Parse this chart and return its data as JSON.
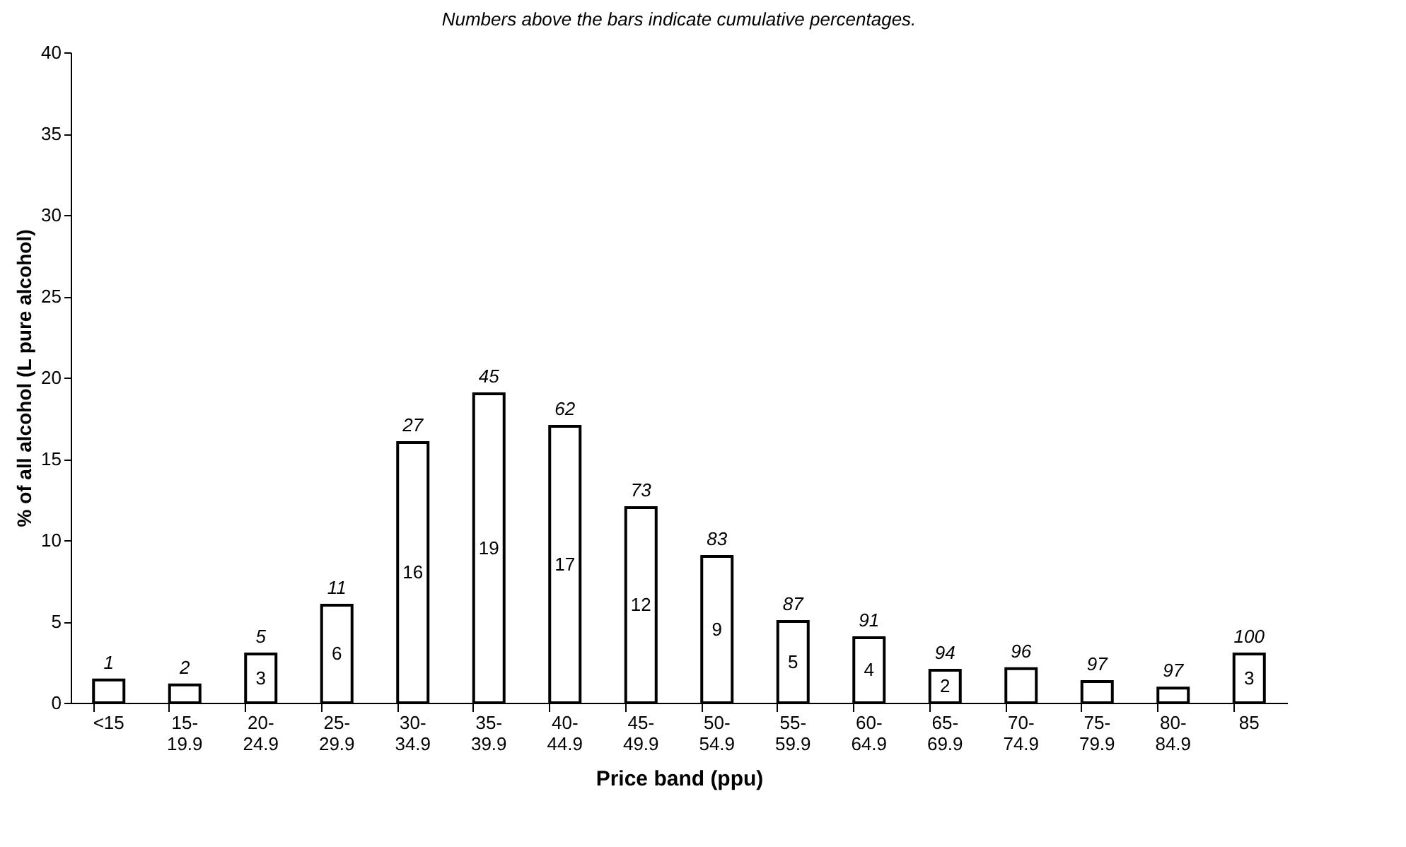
{
  "chart_data": {
    "type": "bar",
    "title": "Numbers above the bars indicate cumulative percentages.",
    "xlabel": "Price band (ppu)",
    "ylabel": "% of all alcohol (L pure alcohol)",
    "categories": [
      "<15",
      "15-19.9",
      "20-24.9",
      "25-29.9",
      "30-34.9",
      "35-39.9",
      "40-44.9",
      "45-49.9",
      "50-54.9",
      "55-59.9",
      "60-64.9",
      "65-69.9",
      "70-74.9",
      "75-79.9",
      "80-84.9",
      "85"
    ],
    "values": [
      1.4,
      1.1,
      3,
      6,
      16,
      19,
      17,
      12,
      9,
      5,
      4,
      2,
      2.1,
      1.3,
      0.9,
      3
    ],
    "value_labels": [
      null,
      null,
      "3",
      "6",
      "16",
      "19",
      "17",
      "12",
      "9",
      "5",
      "4",
      "2",
      null,
      null,
      null,
      "3"
    ],
    "color": "#ffffff",
    "ylim": [
      0,
      40
    ],
    "yticks": [
      0,
      5,
      10,
      15,
      20,
      25,
      30,
      35,
      40
    ],
    "grid": false,
    "annotations": [
      {
        "text": "1",
        "x": "<15",
        "y": 1.4
      },
      {
        "text": "2",
        "x": "15-19.9",
        "y": 1.1
      },
      {
        "text": "5",
        "x": "20-24.9",
        "y": 3
      },
      {
        "text": "11",
        "x": "25-29.9",
        "y": 6
      },
      {
        "text": "27",
        "x": "30-34.9",
        "y": 16
      },
      {
        "text": "45",
        "x": "35-39.9",
        "y": 19
      },
      {
        "text": "62",
        "x": "40-44.9",
        "y": 17
      },
      {
        "text": "73",
        "x": "45-49.9",
        "y": 12
      },
      {
        "text": "83",
        "x": "50-54.9",
        "y": 9
      },
      {
        "text": "87",
        "x": "55-59.9",
        "y": 5
      },
      {
        "text": "91",
        "x": "60-64.9",
        "y": 4
      },
      {
        "text": "94",
        "x": "65-69.9",
        "y": 2
      },
      {
        "text": "96",
        "x": "70-74.9",
        "y": 2.1
      },
      {
        "text": "97",
        "x": "75-79.9",
        "y": 1.3
      },
      {
        "text": "97",
        "x": "80-84.9",
        "y": 0.9
      },
      {
        "text": "100",
        "x": "85",
        "y": 3
      }
    ]
  }
}
